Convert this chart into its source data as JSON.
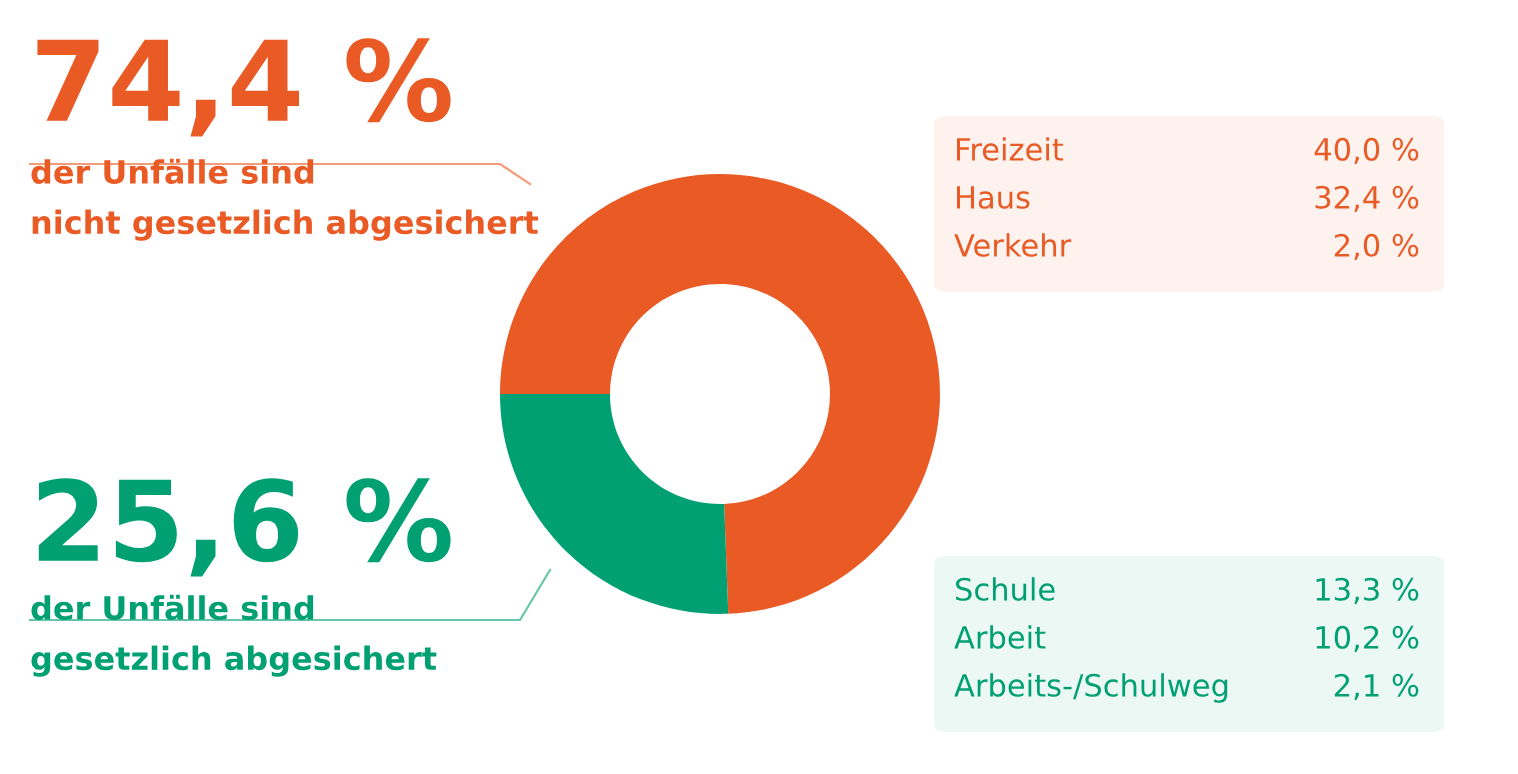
{
  "chart_data": {
    "type": "donut",
    "categories": [
      "der Unfälle sind\nnicht gesetzlich abgesichert",
      "der Unfälle sind\ngesetzlich abgesichert"
    ],
    "values": [
      74.4,
      25.6
    ],
    "value_labels": [
      "74,4 %",
      "25,6 %"
    ],
    "colors": [
      "#e95a25",
      "#00a072"
    ],
    "annotations": [
      "Freizeit",
      "40,0 %",
      "Haus",
      "32,4 %",
      "Verkehr",
      "2,0 %",
      "Schule",
      "13,3 %",
      "Arbeit",
      "10,2 %",
      "Arbeits-/Schulweg",
      "2,1 %"
    ],
    "legend": false
  }
}
